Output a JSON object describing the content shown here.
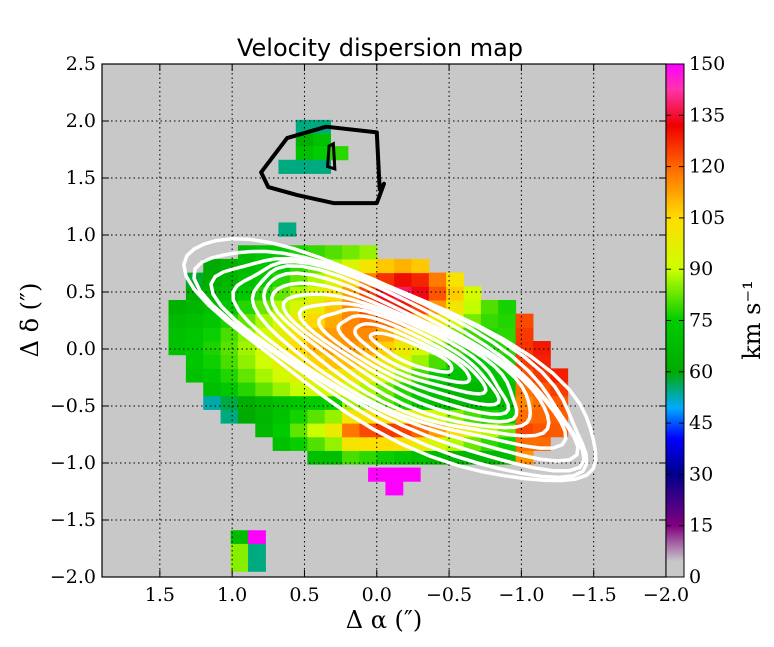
{
  "chart_data": {
    "type": "heatmap",
    "title": "Velocity dispersion map",
    "xlabel": "Δ α  (″)",
    "ylabel": "Δ δ  (″)",
    "colorbar_label": "km s⁻¹",
    "xlim": [
      1.9,
      -2.0
    ],
    "ylim": [
      -2.0,
      2.5
    ],
    "x_ticks": [
      1.5,
      1.0,
      0.5,
      0.0,
      -0.5,
      -1.0,
      -1.5,
      -2.0
    ],
    "x_tick_labels": [
      "1.5",
      "1.0",
      "0.5",
      "0.0",
      "−0.5",
      "−1.0",
      "−1.5",
      "−2.0"
    ],
    "y_ticks": [
      2.5,
      2.0,
      1.5,
      1.0,
      0.5,
      0.0,
      -0.5,
      -1.0,
      -1.5,
      -2.0
    ],
    "y_tick_labels": [
      "2.5",
      "2.0",
      "1.5",
      "1.0",
      "0.5",
      "0.0",
      "−0.5",
      "−1.0",
      "−1.5",
      "−2.0"
    ],
    "colorbar_ticks": [
      0,
      15,
      30,
      45,
      60,
      75,
      90,
      105,
      120,
      135,
      150
    ],
    "colorbar_tick_labels": [
      "0",
      "15",
      "30",
      "45",
      "60",
      "75",
      "90",
      "105",
      "120",
      "135",
      "150"
    ],
    "vmin": 0,
    "vmax": 150,
    "grid": true,
    "background_color": "#c8c8c8",
    "pixel_size_arcsec": 0.12,
    "white_contour_color": "#ffffff",
    "black_contour_color": "#000000"
  }
}
